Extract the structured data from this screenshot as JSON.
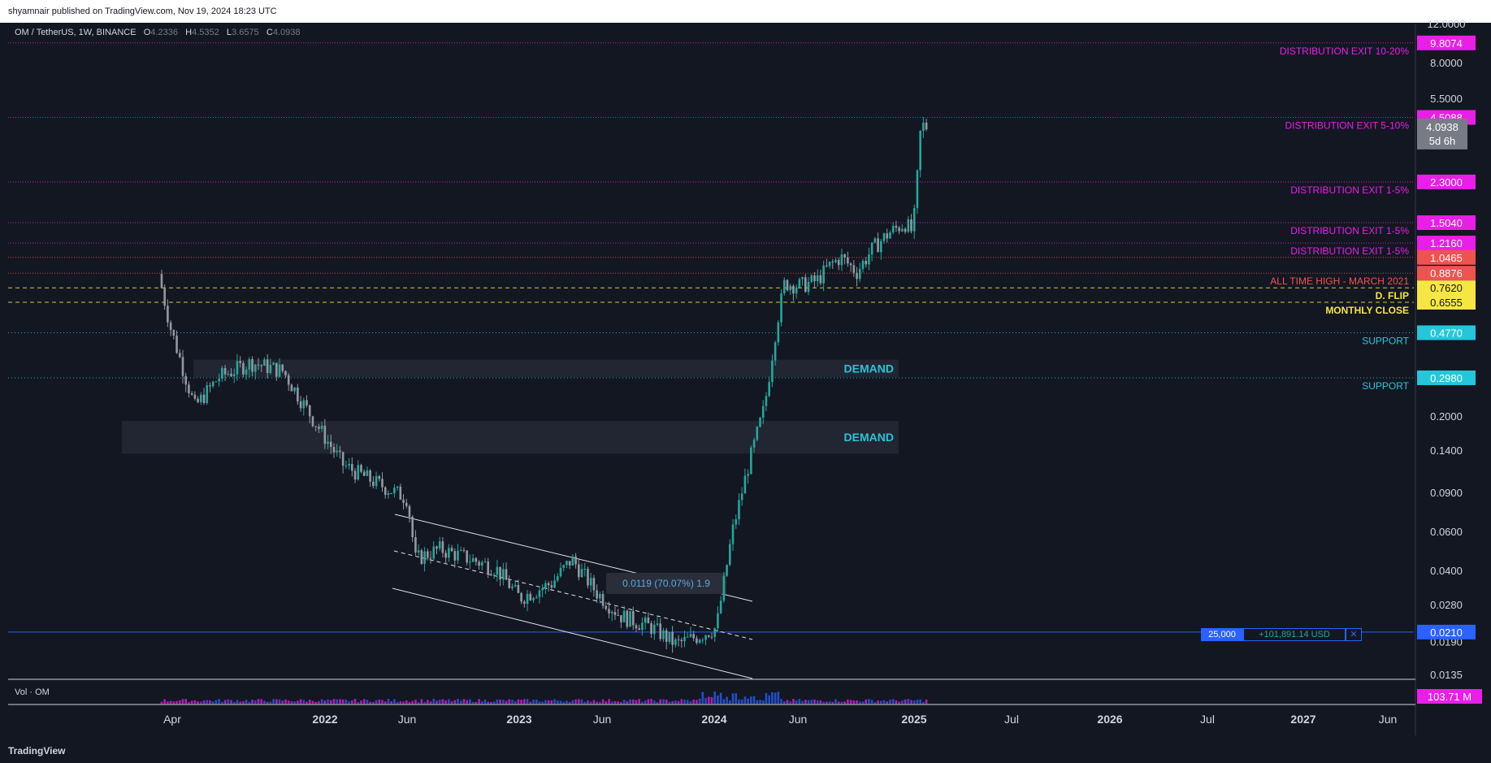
{
  "header": {
    "published": "shyamnair published on TradingView.com, Nov 19, 2024 18:23 UTC"
  },
  "legend": {
    "symbol": "OM / TetherUS, 1W, BINANCE",
    "o_label": "O",
    "o": "4.2336",
    "h_label": "H",
    "h": "4.5352",
    "l_label": "L",
    "l": "3.6575",
    "c_label": "C",
    "c": "4.0938"
  },
  "volume_pane": {
    "title": "Vol · OM",
    "badge": "103.71 M"
  },
  "footer": {
    "brand": "TradingView"
  },
  "position": {
    "qty": "25,000",
    "pnl": "+101,891.14 USD",
    "close": "✕",
    "price": "0.0210"
  },
  "measure": {
    "text": "0.0119 (70.07%) 1.9"
  },
  "colors": {
    "up": "#26a69a",
    "down": "#ef5350",
    "magenta": "#e91ee9",
    "yellow": "#f5e643",
    "cyan": "#26c6da",
    "blue": "#2962ff"
  },
  "chart_data": {
    "type": "candlestick",
    "title": "OM / TetherUS, 1W, BINANCE",
    "y_scale": "log",
    "y_ticks": [
      "12.0000",
      "8.0000",
      "5.5000",
      "0.2000",
      "0.1400",
      "0.0900",
      "0.0600",
      "0.0400",
      "0.0280",
      "0.0190",
      "0.0135"
    ],
    "x_ticks": [
      "Apr",
      "2022",
      "Jun",
      "2023",
      "Jun",
      "2024",
      "Jun",
      "2025",
      "Jul",
      "2026",
      "Jul",
      "2027",
      "Jun"
    ],
    "ylim": [
      0.0125,
      12.5
    ],
    "price_points": [
      [
        "2021-03-22",
        0.88
      ],
      [
        "2021-04-12",
        0.5
      ],
      [
        "2021-05-24",
        0.22
      ],
      [
        "2021-07-05",
        0.3
      ],
      [
        "2021-08-30",
        0.35
      ],
      [
        "2021-10-25",
        0.32
      ],
      [
        "2021-12-13",
        0.2
      ],
      [
        "2022-02-07",
        0.12
      ],
      [
        "2022-04-04",
        0.1
      ],
      [
        "2022-05-30",
        0.085
      ],
      [
        "2022-06-13",
        0.045
      ],
      [
        "2022-07-25",
        0.05
      ],
      [
        "2022-09-05",
        0.046
      ],
      [
        "2022-10-31",
        0.041
      ],
      [
        "2022-12-12",
        0.03
      ],
      [
        "2023-02-06",
        0.035
      ],
      [
        "2023-03-13",
        0.045
      ],
      [
        "2023-04-24",
        0.032
      ],
      [
        "2023-06-05",
        0.025
      ],
      [
        "2023-07-31",
        0.022
      ],
      [
        "2023-09-11",
        0.0185
      ],
      [
        "2023-10-16",
        0.02
      ],
      [
        "2023-11-20",
        0.022
      ],
      [
        "2023-12-18",
        0.06
      ],
      [
        "2024-01-15",
        0.12
      ],
      [
        "2024-02-12",
        0.22
      ],
      [
        "2024-03-04",
        0.52
      ],
      [
        "2024-03-18",
        0.8
      ],
      [
        "2024-04-15",
        0.78
      ],
      [
        "2024-05-13",
        0.82
      ],
      [
        "2024-06-03",
        0.95
      ],
      [
        "2024-06-24",
        1.05
      ],
      [
        "2024-07-22",
        0.9
      ],
      [
        "2024-08-19",
        1.15
      ],
      [
        "2024-09-16",
        1.35
      ],
      [
        "2024-10-14",
        1.5
      ],
      [
        "2024-10-28",
        1.35
      ],
      [
        "2024-11-04",
        2.3
      ],
      [
        "2024-11-11",
        4.2
      ],
      [
        "2024-11-18",
        4.09
      ]
    ],
    "levels": [
      {
        "label": "DISTRIBUTION EXIT 10-20%",
        "value": 9.8074,
        "value_label": "9.8074",
        "color": "#e91ee9"
      },
      {
        "label": "DISTRIBUTION EXIT 5-10%",
        "value": 4.5088,
        "value_label": "4.5088",
        "color": "#e91ee9"
      },
      {
        "label": "DISTRIBUTION EXIT 1-5%",
        "value": 2.3,
        "value_label": "2.3000",
        "color": "#e91ee9"
      },
      {
        "label": "DISTRIBUTION EXIT 1-5%",
        "value": 1.504,
        "value_label": "1.5040",
        "color": "#e91ee9"
      },
      {
        "label": "DISTRIBUTION EXIT 1-5%",
        "value": 1.216,
        "value_label": "1.2160",
        "color": "#e91ee9"
      },
      {
        "label": "",
        "value": 1.0465,
        "value_label": "1.0465",
        "color": "#ef5350"
      },
      {
        "label": "ALL TIME HIGH - MARCH 2021",
        "value": 0.8876,
        "value_label": "0.8876",
        "color": "#ef5350"
      },
      {
        "label": "D. FLIP",
        "value": 0.762,
        "value_label": "0.7620",
        "color": "#f5e643"
      },
      {
        "label": "MONTHLY CLOSE",
        "value": 0.6555,
        "value_label": "0.6555",
        "color": "#f5e643"
      },
      {
        "label": "SUPPORT",
        "value": 0.477,
        "value_label": "0.4770",
        "color": "#26c6da"
      },
      {
        "label": "SUPPORT",
        "value": 0.298,
        "value_label": "0.2980",
        "color": "#26c6da"
      }
    ],
    "current_price": {
      "value": "4.0938",
      "countdown": "5d 6h"
    },
    "demand_zones": [
      {
        "label": "DEMAND",
        "from": 0.3,
        "to": 0.36
      },
      {
        "label": "DEMAND",
        "from": 0.135,
        "to": 0.19
      }
    ]
  }
}
